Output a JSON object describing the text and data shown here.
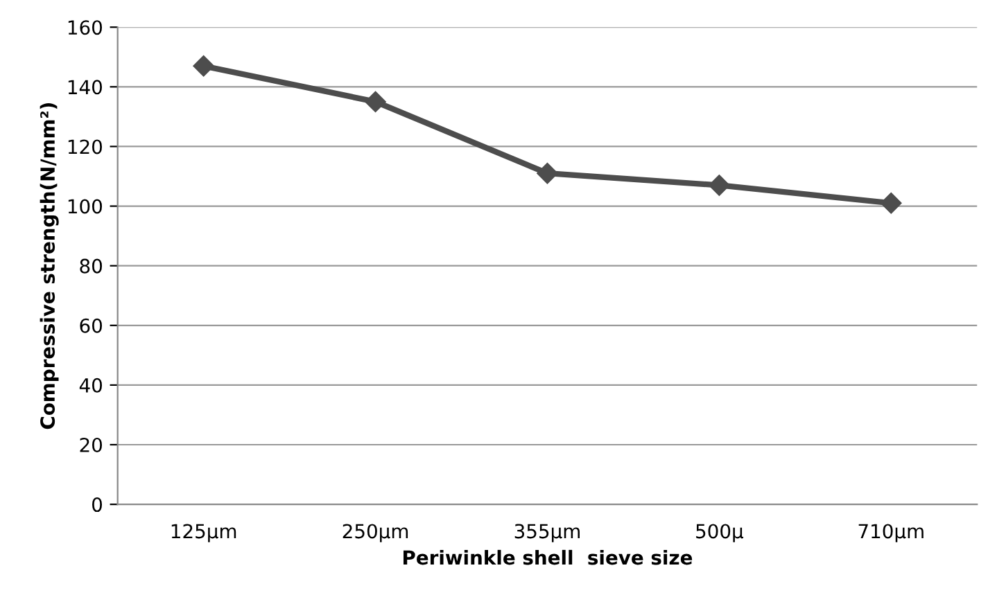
{
  "chart_data": {
    "type": "line",
    "xlabel": "Periwinkle shell  sieve size",
    "ylabel": "Compressive strength(N/mm²)",
    "categories": [
      "125µm",
      "250µm",
      "355µm",
      "500µ",
      "710µm"
    ],
    "series": [
      {
        "color": "#4d4d4d",
        "values": [
          147,
          135,
          111,
          107,
          101
        ]
      }
    ],
    "ylim": [
      0,
      160
    ],
    "yticks": [
      0,
      20,
      40,
      60,
      80,
      100,
      120,
      140,
      160
    ],
    "grid": "y",
    "legend": false,
    "marker": "diamond",
    "line_style": "solid"
  }
}
